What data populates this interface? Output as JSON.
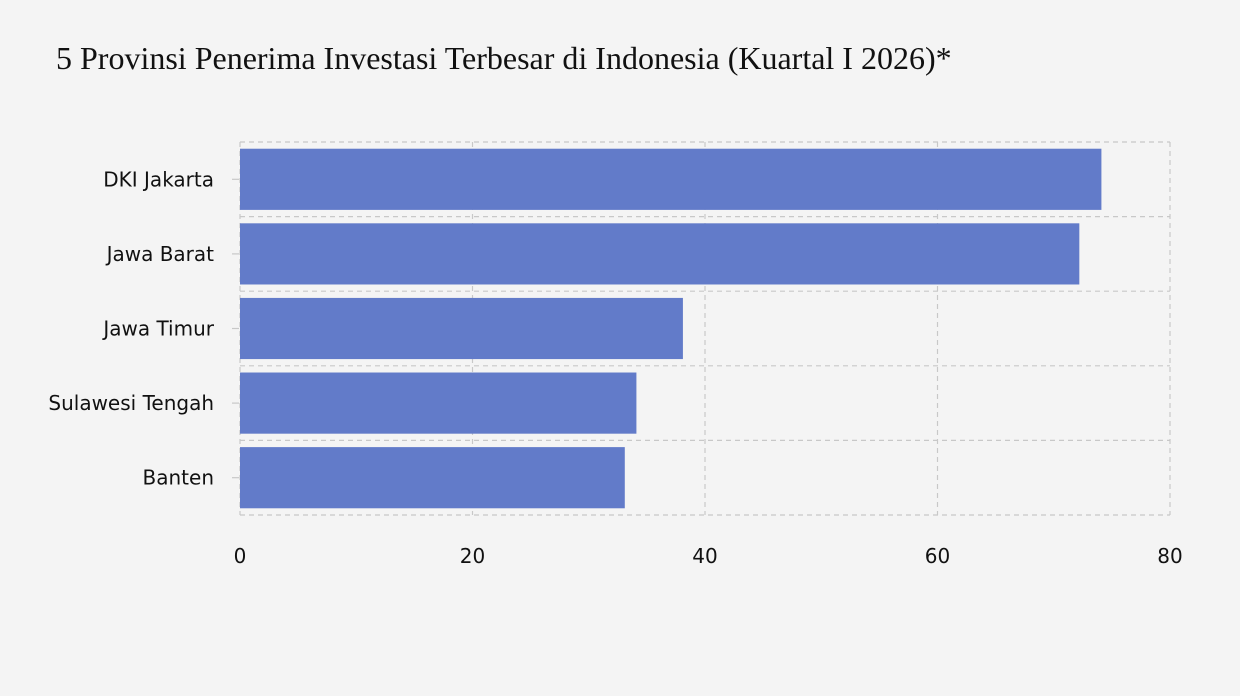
{
  "chart_data": {
    "type": "bar",
    "orientation": "horizontal",
    "title": "5 Provinsi Penerima Investasi Terbesar di Indonesia (Kuartal I 2026)*",
    "categories": [
      "DKI Jakarta",
      "Jawa Barat",
      "Jawa Timur",
      "Sulawesi Tengah",
      "Banten"
    ],
    "values": [
      74.1,
      72.2,
      38.1,
      34.1,
      33.1
    ],
    "xlim": [
      0,
      80
    ],
    "xticks": [
      "0",
      "20",
      "40",
      "60",
      "80"
    ],
    "grid": true,
    "bar_color": "#627bc9",
    "grid_color": "#c8c8c8"
  }
}
